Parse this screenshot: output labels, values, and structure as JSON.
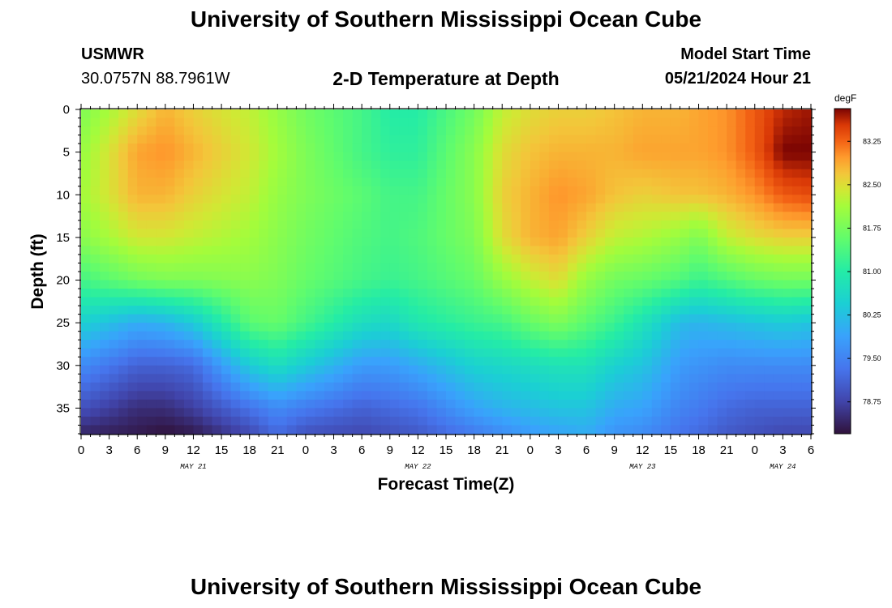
{
  "header": {
    "title": "University of Southern Mississippi Ocean Cube",
    "station_id": "USMWR",
    "coordinates": "30.0757N  88.7961W",
    "subtitle": "2-D Temperature at Depth",
    "model_start_label": "Model Start Time",
    "model_start_value": "05/21/2024 Hour 21"
  },
  "footer": {
    "title": "University of Southern Mississippi Ocean Cube"
  },
  "chart_data": {
    "type": "heatmap",
    "title": "2-D Temperature at Depth",
    "xlabel": "Forecast Time(Z)",
    "ylabel": "Depth (ft)",
    "x_range_hours": [
      0,
      78
    ],
    "y_range_ft": [
      0,
      38
    ],
    "x_tick_labels": [
      "0",
      "3",
      "6",
      "9",
      "12",
      "15",
      "18",
      "21",
      "0",
      "3",
      "6",
      "9",
      "12",
      "15",
      "18",
      "21",
      "0",
      "3",
      "6",
      "9",
      "12",
      "15",
      "18",
      "21",
      "0",
      "3",
      "6"
    ],
    "day_labels": [
      {
        "label": "MAY 21",
        "hour": 12
      },
      {
        "label": "MAY 22",
        "hour": 36
      },
      {
        "label": "MAY 23",
        "hour": 60
      },
      {
        "label": "MAY 24",
        "hour": 75
      }
    ],
    "y_ticks": [
      0,
      5,
      10,
      15,
      20,
      25,
      30,
      35
    ],
    "colorbar": {
      "unit": "degF",
      "range": [
        78.2,
        83.8
      ],
      "tick_values": [
        78.75,
        79.5,
        80.25,
        81.0,
        81.75,
        82.5,
        83.25
      ],
      "tick_labels": [
        "78.75",
        "79.50",
        "80.25",
        "81.00",
        "81.75",
        "82.50",
        "83.25"
      ]
    },
    "profile_hours": [
      0,
      6,
      9,
      12,
      18,
      21,
      24,
      30,
      33,
      36,
      42,
      45,
      48,
      51,
      54,
      57,
      60,
      64,
      66,
      69,
      72,
      75,
      78
    ],
    "profile_depths_ft": [
      0,
      5,
      10,
      15,
      20,
      25,
      30,
      35,
      38
    ],
    "profile_temps_degF": [
      [
        81.8,
        82.0,
        82.1,
        81.9,
        81.3,
        80.5,
        79.6,
        78.9,
        78.4
      ],
      [
        82.5,
        82.9,
        82.8,
        82.4,
        81.7,
        80.0,
        79.1,
        78.5,
        78.3
      ],
      [
        82.8,
        83.0,
        82.8,
        82.4,
        81.8,
        80.1,
        79.1,
        78.5,
        78.2
      ],
      [
        82.6,
        82.8,
        82.6,
        82.3,
        81.8,
        80.4,
        79.2,
        78.7,
        78.3
      ],
      [
        82.3,
        82.4,
        82.3,
        82.1,
        81.9,
        81.5,
        80.4,
        79.3,
        78.8
      ],
      [
        82.0,
        82.1,
        82.0,
        81.9,
        81.8,
        81.6,
        80.7,
        79.6,
        79.2
      ],
      [
        81.7,
        81.8,
        81.8,
        81.7,
        81.6,
        81.3,
        80.4,
        79.4,
        78.9
      ],
      [
        81.3,
        81.3,
        81.5,
        81.4,
        81.3,
        80.7,
        79.8,
        79.1,
        78.8
      ],
      [
        81.0,
        81.1,
        81.3,
        81.3,
        81.2,
        80.6,
        79.8,
        79.2,
        78.9
      ],
      [
        81.0,
        81.1,
        81.3,
        81.4,
        81.3,
        80.9,
        80.0,
        79.3,
        79.0
      ],
      [
        81.7,
        81.9,
        81.9,
        81.8,
        81.6,
        81.2,
        80.5,
        79.9,
        79.4
      ],
      [
        82.3,
        82.5,
        82.6,
        82.5,
        82.0,
        81.3,
        80.6,
        80.1,
        79.6
      ],
      [
        82.5,
        82.7,
        82.8,
        82.8,
        82.3,
        81.6,
        80.7,
        80.2,
        79.8
      ],
      [
        82.6,
        82.8,
        83.0,
        82.9,
        82.5,
        81.8,
        80.8,
        80.3,
        79.9
      ],
      [
        82.6,
        82.8,
        82.9,
        82.6,
        82.0,
        81.5,
        80.8,
        80.3,
        80.0
      ],
      [
        82.7,
        82.8,
        82.7,
        82.3,
        81.7,
        81.2,
        80.5,
        80.0,
        79.7
      ],
      [
        82.8,
        82.9,
        82.6,
        82.2,
        81.6,
        80.8,
        80.3,
        79.9,
        79.6
      ],
      [
        82.8,
        82.9,
        82.7,
        82.0,
        81.4,
        80.2,
        79.8,
        79.5,
        79.3
      ],
      [
        82.9,
        82.9,
        82.7,
        81.8,
        81.2,
        80.1,
        79.7,
        79.4,
        79.2
      ],
      [
        83.0,
        83.0,
        82.8,
        82.3,
        81.4,
        80.2,
        79.6,
        79.2,
        79.0
      ],
      [
        83.3,
        83.3,
        83.0,
        82.5,
        81.6,
        80.3,
        79.6,
        79.1,
        78.9
      ],
      [
        83.6,
        83.8,
        83.3,
        82.6,
        81.7,
        80.4,
        79.6,
        79.1,
        78.8
      ],
      [
        83.7,
        83.8,
        83.4,
        82.6,
        81.7,
        80.3,
        79.6,
        79.1,
        78.8
      ]
    ]
  }
}
